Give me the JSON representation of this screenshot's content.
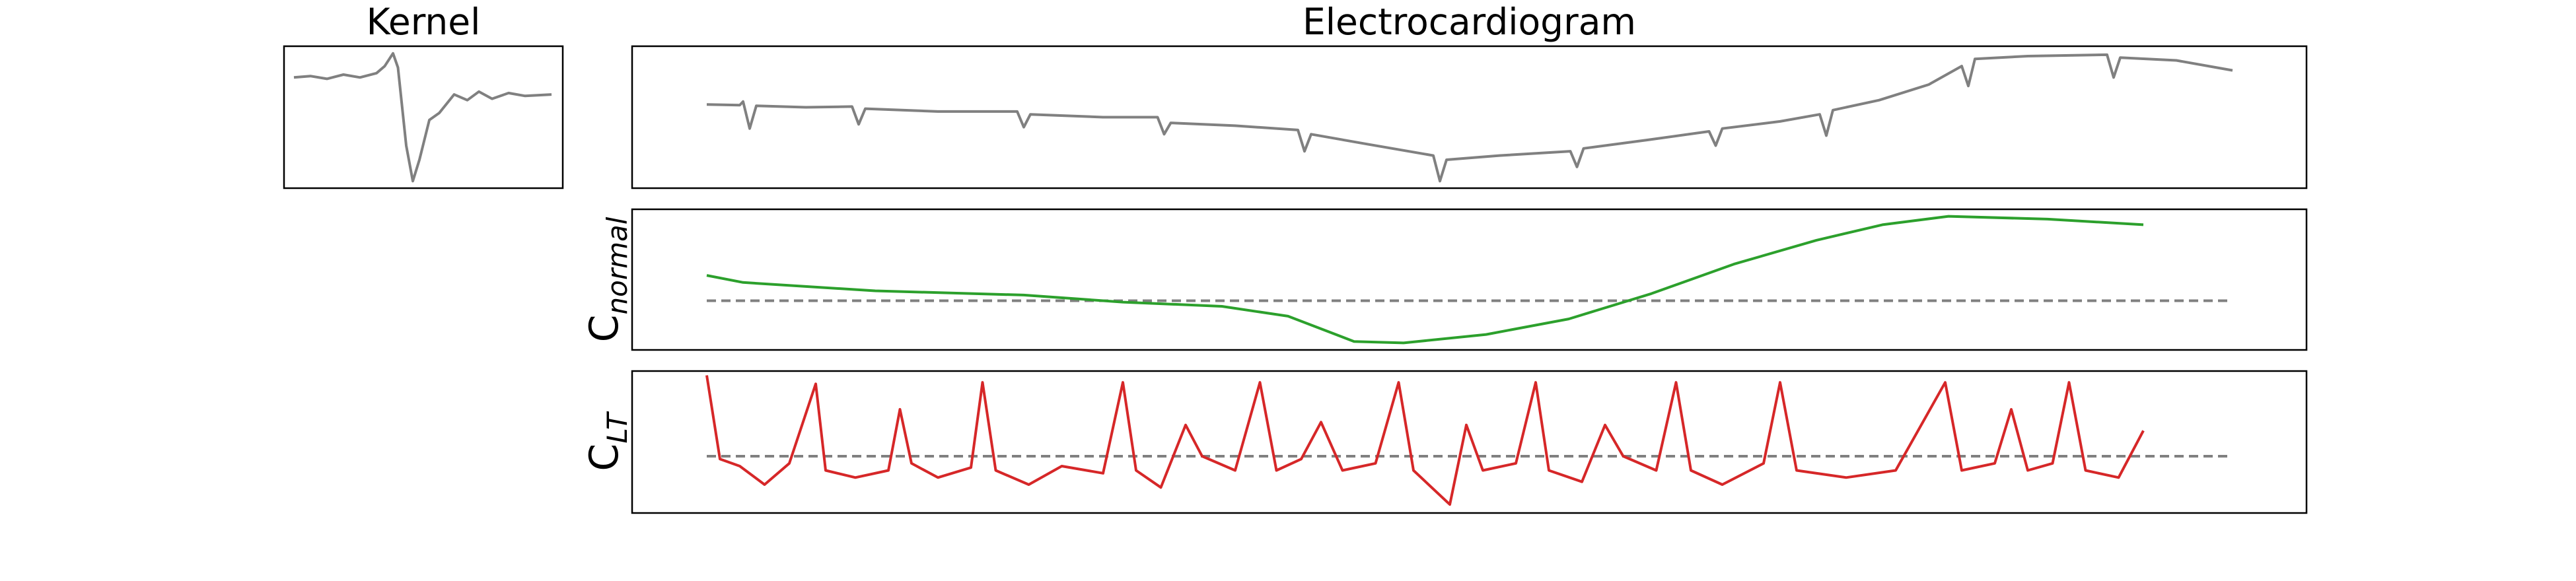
{
  "chart_data": [
    {
      "type": "line",
      "title": "Kernel",
      "xlim": [
        0,
        156
      ],
      "ylim": [
        0,
        100
      ],
      "x": [
        0,
        10,
        20,
        30,
        40,
        50,
        55,
        60,
        63,
        68,
        72,
        76,
        82,
        88,
        97,
        105,
        112,
        120,
        130,
        140,
        156
      ],
      "color": "#808080",
      "values": [
        78,
        79,
        77,
        80,
        78,
        81,
        86,
        95,
        85,
        30,
        5,
        20,
        48,
        53,
        66,
        62,
        68,
        63,
        67,
        65,
        66
      ]
    },
    {
      "type": "line",
      "title": "Electrocardiogram",
      "xlim": [
        0,
        924
      ],
      "ylim": [
        0,
        100
      ],
      "x": [
        0,
        20,
        22,
        26,
        30,
        60,
        88,
        92,
        96,
        140,
        188,
        192,
        196,
        240,
        273,
        277,
        281,
        320,
        358,
        362,
        366,
        400,
        440,
        444,
        448,
        480,
        523,
        527,
        531,
        570,
        607,
        611,
        615,
        650,
        674,
        678,
        682,
        710,
        740,
        760,
        764,
        768,
        800,
        848,
        852,
        856,
        890,
        924
      ],
      "color": "#808080",
      "values": [
        59,
        58.5,
        61,
        42,
        58,
        57,
        57.5,
        45,
        56,
        54,
        54,
        43,
        52,
        50,
        50,
        38,
        46,
        44,
        41,
        26,
        38,
        31,
        23,
        5,
        20,
        23,
        26,
        15,
        28,
        34,
        40,
        30,
        42,
        47,
        52,
        37,
        55,
        62,
        73,
        86,
        72,
        91,
        93,
        94,
        78,
        92,
        90,
        83
      ]
    },
    {
      "type": "line",
      "ylabel": "C",
      "ylabel_subscript": "normal",
      "xlim": [
        0,
        924
      ],
      "ylim": [
        0,
        100
      ],
      "hline": 35,
      "x": [
        0,
        22,
        102,
        192,
        252,
        312,
        352,
        392,
        422,
        472,
        522,
        572,
        622,
        672,
        712,
        752,
        812,
        870
      ],
      "color": "#2ca02c",
      "values": [
        53,
        48,
        42,
        39,
        34,
        31,
        24,
        6,
        5,
        11,
        22,
        40,
        61,
        78,
        89,
        95,
        93,
        89
      ]
    },
    {
      "type": "line",
      "ylabel": "C",
      "ylabel_subscript": "LT",
      "xlim": [
        0,
        924
      ],
      "ylim": [
        0,
        100
      ],
      "hline": 40,
      "x": [
        0,
        8,
        20,
        35,
        50,
        66,
        72,
        90,
        110,
        117,
        124,
        140,
        160,
        167,
        175,
        195,
        215,
        240,
        252,
        260,
        275,
        290,
        300,
        320,
        335,
        345,
        360,
        372,
        385,
        405,
        419,
        428,
        450,
        460,
        470,
        490,
        502,
        510,
        530,
        544,
        555,
        575,
        587,
        596,
        615,
        640,
        650,
        660,
        690,
        720,
        750,
        760,
        780,
        790,
        800,
        815,
        825,
        835,
        855,
        870
      ],
      "color": "#d62728",
      "values": [
        97,
        38,
        33,
        20,
        35,
        91,
        30,
        25,
        30,
        73,
        35,
        25,
        32,
        92,
        30,
        20,
        33,
        28,
        92,
        30,
        18,
        62,
        40,
        30,
        92,
        30,
        38,
        64,
        30,
        35,
        92,
        30,
        6,
        62,
        30,
        35,
        92,
        30,
        22,
        62,
        40,
        30,
        92,
        30,
        20,
        35,
        92,
        30,
        25,
        30,
        92,
        30,
        35,
        73,
        30,
        35,
        92,
        30,
        25,
        58
      ]
    }
  ]
}
